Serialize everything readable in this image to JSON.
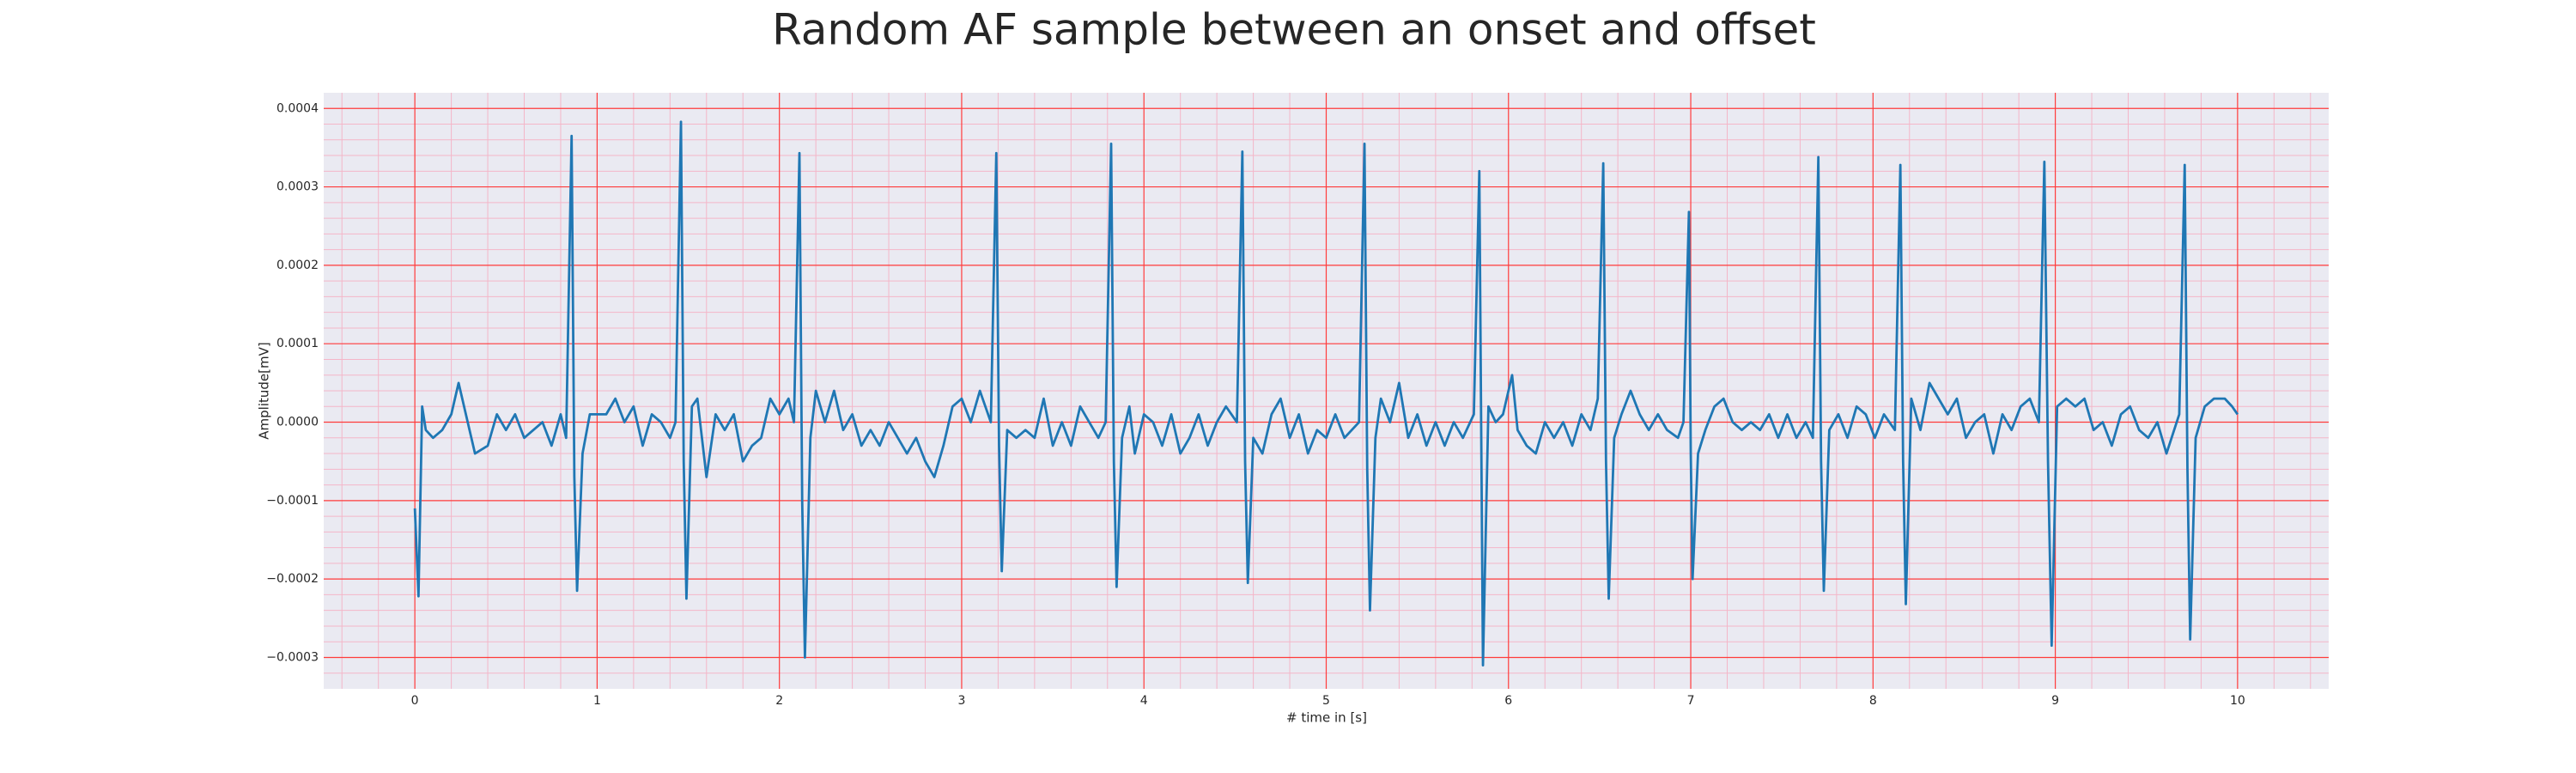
{
  "chart_data": {
    "type": "line",
    "title": "Random AF sample between an onset and offset",
    "xlabel": "# time in [s]",
    "ylabel": "Amplitude[mV]",
    "xlim": [
      -0.5,
      10.5
    ],
    "ylim": [
      -0.00034,
      0.00042
    ],
    "xticks": [
      0,
      1,
      2,
      3,
      4,
      5,
      6,
      7,
      8,
      9,
      10
    ],
    "yticks": [
      {
        "value": -0.0003,
        "label": "−0.0003"
      },
      {
        "value": -0.0002,
        "label": "−0.0002"
      },
      {
        "value": -0.0001,
        "label": "−0.0001"
      },
      {
        "value": 0,
        "label": "0.0000"
      },
      0.0001,
      0.0002,
      0.0003,
      0.0004
    ],
    "grid": true,
    "minor_grid": true,
    "grid_color": "#ff3b3b",
    "minor_grid_color": "#f4b6c8",
    "background": "#eaeaf2",
    "x": [
      0,
      0.02,
      0.04,
      0.06,
      0.1,
      0.15,
      0.2,
      0.24,
      0.3,
      0.33,
      0.4,
      0.45,
      0.5,
      0.55,
      0.6,
      0.65,
      0.7,
      0.75,
      0.8,
      0.83,
      0.86,
      0.875,
      0.89,
      0.92,
      0.96,
      1.0,
      1.05,
      1.1,
      1.15,
      1.2,
      1.25,
      1.3,
      1.35,
      1.4,
      1.43,
      1.46,
      1.475,
      1.49,
      1.52,
      1.55,
      1.6,
      1.65,
      1.7,
      1.75,
      1.8,
      1.85,
      1.9,
      1.95,
      2.0,
      2.05,
      2.08,
      2.11,
      2.125,
      2.14,
      2.17,
      2.2,
      2.25,
      2.3,
      2.35,
      2.4,
      2.45,
      2.5,
      2.55,
      2.6,
      2.65,
      2.7,
      2.75,
      2.8,
      2.85,
      2.9,
      2.95,
      3.0,
      3.05,
      3.1,
      3.16,
      3.19,
      3.205,
      3.22,
      3.25,
      3.3,
      3.35,
      3.4,
      3.45,
      3.5,
      3.55,
      3.6,
      3.65,
      3.7,
      3.75,
      3.79,
      3.82,
      3.835,
      3.85,
      3.88,
      3.92,
      3.95,
      4.0,
      4.05,
      4.1,
      4.15,
      4.2,
      4.25,
      4.3,
      4.35,
      4.4,
      4.45,
      4.51,
      4.54,
      4.555,
      4.57,
      4.6,
      4.65,
      4.7,
      4.75,
      4.8,
      4.85,
      4.9,
      4.95,
      5.0,
      5.05,
      5.1,
      5.18,
      5.21,
      5.225,
      5.24,
      5.27,
      5.3,
      5.35,
      5.4,
      5.45,
      5.5,
      5.55,
      5.6,
      5.65,
      5.7,
      5.75,
      5.81,
      5.84,
      5.85,
      5.86,
      5.89,
      5.93,
      5.97,
      6.02,
      6.05,
      6.1,
      6.15,
      6.2,
      6.25,
      6.3,
      6.35,
      6.4,
      6.45,
      6.49,
      6.52,
      6.535,
      6.55,
      6.58,
      6.62,
      6.67,
      6.72,
      6.77,
      6.82,
      6.87,
      6.93,
      6.96,
      6.99,
      7.0,
      7.01,
      7.04,
      7.08,
      7.13,
      7.18,
      7.23,
      7.28,
      7.33,
      7.38,
      7.43,
      7.48,
      7.53,
      7.58,
      7.63,
      7.67,
      7.7,
      7.715,
      7.73,
      7.76,
      7.81,
      7.86,
      7.91,
      7.96,
      8.01,
      8.06,
      8.12,
      8.15,
      8.165,
      8.18,
      8.21,
      8.26,
      8.31,
      8.36,
      8.41,
      8.46,
      8.51,
      8.56,
      8.61,
      8.66,
      8.71,
      8.76,
      8.81,
      8.86,
      8.91,
      8.94,
      8.96,
      8.98,
      9.01,
      9.06,
      9.11,
      9.16,
      9.21,
      9.26,
      9.31,
      9.36,
      9.41,
      9.46,
      9.51,
      9.56,
      9.61,
      9.68,
      9.71,
      9.725,
      9.74,
      9.77,
      9.82,
      9.87,
      9.93,
      9.97,
      10.0
    ],
    "series": [
      {
        "name": "signal",
        "color": "#1f77b4",
        "values": [
          -0.00011,
          -0.000222,
          2e-05,
          -1e-05,
          -2e-05,
          -1e-05,
          1e-05,
          5e-05,
          -1e-05,
          -4e-05,
          -3e-05,
          1e-05,
          -1e-05,
          1e-05,
          -2e-05,
          -1e-05,
          0,
          -3e-05,
          1e-05,
          -2e-05,
          0.000365,
          -7e-05,
          -0.000215,
          -4e-05,
          1e-05,
          1e-05,
          1e-05,
          3e-05,
          0,
          2e-05,
          -3e-05,
          1e-05,
          0,
          -2e-05,
          0,
          0.000383,
          -5e-05,
          -0.000225,
          2e-05,
          3e-05,
          -7e-05,
          1e-05,
          -1e-05,
          1e-05,
          -5e-05,
          -3e-05,
          -2e-05,
          3e-05,
          1e-05,
          3e-05,
          0,
          0.000343,
          -0.0001,
          -0.0003,
          -2e-05,
          4e-05,
          0,
          4e-05,
          -1e-05,
          1e-05,
          -3e-05,
          -1e-05,
          -3e-05,
          0,
          -2e-05,
          -4e-05,
          -2e-05,
          -5e-05,
          -7e-05,
          -3e-05,
          2e-05,
          3e-05,
          0,
          4e-05,
          0,
          0.000343,
          -3e-05,
          -0.00019,
          -1e-05,
          -2e-05,
          -1e-05,
          -2e-05,
          3e-05,
          -3e-05,
          0,
          -3e-05,
          2e-05,
          0,
          -2e-05,
          0,
          0.000355,
          -5e-05,
          -0.00021,
          -2e-05,
          2e-05,
          -4e-05,
          1e-05,
          0,
          -3e-05,
          1e-05,
          -4e-05,
          -2e-05,
          1e-05,
          -3e-05,
          0,
          2e-05,
          0,
          0.000345,
          -5e-05,
          -0.000205,
          -2e-05,
          -4e-05,
          1e-05,
          3e-05,
          -2e-05,
          1e-05,
          -4e-05,
          -1e-05,
          -2e-05,
          1e-05,
          -2e-05,
          0,
          0.000355,
          -6e-05,
          -0.00024,
          -2e-05,
          3e-05,
          0,
          5e-05,
          -2e-05,
          1e-05,
          -3e-05,
          0,
          -3e-05,
          0,
          -2e-05,
          1e-05,
          0.00032,
          0,
          -0.00031,
          2e-05,
          0,
          1e-05,
          6e-05,
          -1e-05,
          -3e-05,
          -4e-05,
          0,
          -2e-05,
          0,
          -3e-05,
          1e-05,
          -1e-05,
          3e-05,
          0.00033,
          -5e-05,
          -0.000225,
          -2e-05,
          1e-05,
          4e-05,
          1e-05,
          -1e-05,
          1e-05,
          -1e-05,
          -2e-05,
          0,
          0.000268,
          -4e-05,
          -0.0002,
          -4e-05,
          -1e-05,
          2e-05,
          3e-05,
          0,
          -1e-05,
          0,
          -1e-05,
          1e-05,
          -2e-05,
          1e-05,
          -2e-05,
          0,
          -2e-05,
          0.000338,
          -5e-05,
          -0.000215,
          -1e-05,
          1e-05,
          -2e-05,
          2e-05,
          1e-05,
          -2e-05,
          1e-05,
          -1e-05,
          0.000328,
          -5e-05,
          -0.000232,
          3e-05,
          -1e-05,
          5e-05,
          3e-05,
          1e-05,
          3e-05,
          -2e-05,
          0,
          1e-05,
          -4e-05,
          1e-05,
          -1e-05,
          2e-05,
          3e-05,
          0,
          0.000332,
          -5e-05,
          -0.000285,
          2e-05,
          3e-05,
          2e-05,
          3e-05,
          -1e-05,
          0,
          -3e-05,
          1e-05,
          2e-05,
          -1e-05,
          -2e-05,
          0,
          -4e-05,
          1e-05,
          0.000328,
          -6e-05,
          -0.000277,
          -2e-05,
          2e-05,
          3e-05,
          3e-05,
          2e-05,
          1e-05
        ]
      }
    ]
  }
}
